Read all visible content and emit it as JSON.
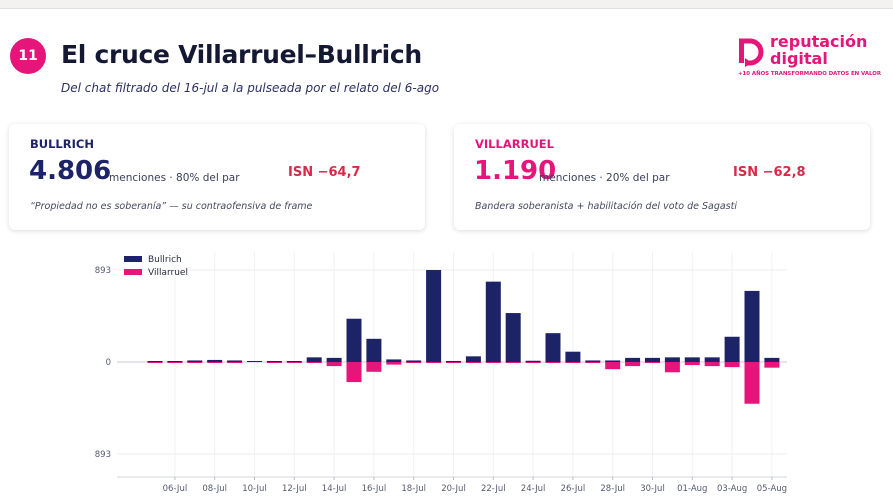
{
  "slide": {
    "number": "11",
    "title": "El cruce Villarruel–Bullrich",
    "subtitle": "Del chat filtrado del 16-jul a la pulseada por el relato del 6-ago"
  },
  "logo": {
    "line1": "reputación",
    "line2": "digital",
    "tagline": "+10 AÑOS TRANSFORMANDO DATOS EN VALOR",
    "color": "#e5157a"
  },
  "cards": [
    {
      "name": "BULLRICH",
      "count": "4.806",
      "desc": "menciones · 80% del par",
      "isn": "ISN −64,7",
      "note": "“Propiedad no es soberanía” — su contraofensiva de frame",
      "color": "#1c2366"
    },
    {
      "name": "VILLARRUEL",
      "count": "1.190",
      "desc": "menciones · 20% del par",
      "isn": "ISN −62,8",
      "note": "Bandera soberanista + habilitación del voto de Sagasti",
      "color": "#e5157a"
    }
  ],
  "chart_data": {
    "type": "bar",
    "title": "",
    "xlabel": "",
    "ylabel": "",
    "ylim": [
      -893,
      893
    ],
    "yticks": [
      {
        "value": 893,
        "label": "893"
      },
      {
        "value": 0,
        "label": "0"
      },
      {
        "value": -893,
        "label": "893"
      }
    ],
    "categories": [
      "05-Jul",
      "06-Jul",
      "07-Jul",
      "08-Jul",
      "09-Jul",
      "10-Jul",
      "11-Jul",
      "12-Jul",
      "13-Jul",
      "14-Jul",
      "15-Jul",
      "16-Jul",
      "17-Jul",
      "18-Jul",
      "19-Jul",
      "20-Jul",
      "21-Jul",
      "22-Jul",
      "23-Jul",
      "24-Jul",
      "25-Jul",
      "26-Jul",
      "27-Jul",
      "28-Jul",
      "29-Jul",
      "30-Jul",
      "31-Jul",
      "01-Aug",
      "02-Aug",
      "03-Aug",
      "04-Aug",
      "05-Aug"
    ],
    "xtick_labels": [
      "06-Jul",
      "08-Jul",
      "10-Jul",
      "12-Jul",
      "14-Jul",
      "16-Jul",
      "18-Jul",
      "20-Jul",
      "22-Jul",
      "24-Jul",
      "26-Jul",
      "28-Jul",
      "30-Jul",
      "01-Aug",
      "03-Aug",
      "05-Aug"
    ],
    "series": [
      {
        "name": "Bullrich",
        "color": "#1c2366",
        "values": [
          8,
          8,
          15,
          20,
          15,
          2,
          8,
          8,
          45,
          40,
          420,
          225,
          25,
          15,
          893,
          10,
          55,
          780,
          475,
          12,
          280,
          100,
          15,
          15,
          40,
          40,
          45,
          45,
          45,
          245,
          690,
          40
        ]
      },
      {
        "name": "Villarruel",
        "color": "#e5157a",
        "values": [
          -5,
          -5,
          -5,
          -8,
          -8,
          0,
          -5,
          -5,
          -5,
          -40,
          -195,
          -95,
          -25,
          -5,
          -5,
          -10,
          -5,
          -5,
          -5,
          -5,
          -5,
          -5,
          -5,
          -70,
          -40,
          -10,
          -100,
          -30,
          -40,
          -50,
          -405,
          -55
        ]
      }
    ],
    "legend": "top-left",
    "grid": true
  }
}
